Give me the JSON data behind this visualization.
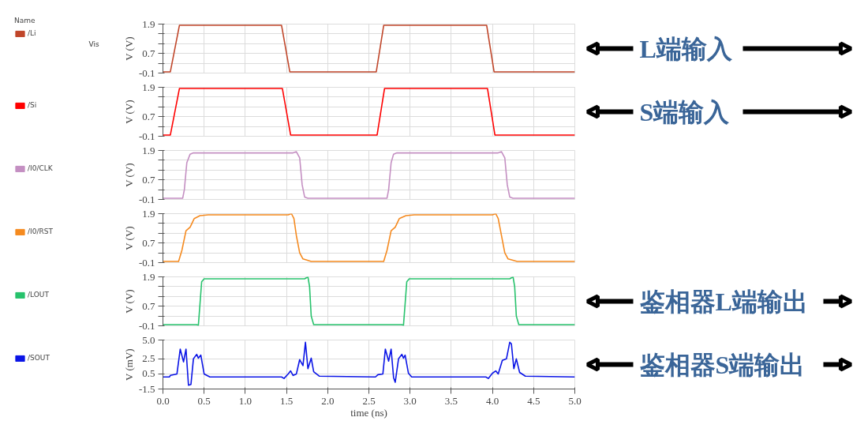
{
  "chart_data": [
    {
      "type": "line",
      "xlim": [
        0,
        5
      ],
      "xticks": [
        0,
        0.5,
        1,
        1.5,
        2,
        2.5,
        3,
        3.5,
        4,
        4.5,
        5
      ],
      "ylim": [
        -0.1,
        1.9
      ],
      "yticks": [
        -0.1,
        {
          "value": 0.3,
          "label": null
        },
        0.7,
        {
          "value": 1.1,
          "label": null
        },
        {
          "value": 1.5,
          "label": null
        },
        1.9
      ],
      "ylabel": "V (V)",
      "grid": true,
      "legend": "left",
      "legend_title": "Name",
      "tick_labels": "y",
      "line_style": "solid",
      "annotations": [
        "Vis",
        "L端输入"
      ],
      "series": [
        {
          "name": "/Li",
          "color": "#c0462a",
          "x": [
            0,
            0.09,
            0.2,
            1.44,
            1.54,
            2.59,
            2.68,
            3.93,
            4.02,
            5.0
          ],
          "values": [
            -0.05,
            -0.05,
            1.85,
            1.85,
            -0.05,
            -0.05,
            1.85,
            1.85,
            -0.05,
            -0.05
          ]
        }
      ]
    },
    {
      "type": "line",
      "xlim": [
        0,
        5
      ],
      "xticks": [
        0,
        0.5,
        1,
        1.5,
        2,
        2.5,
        3,
        3.5,
        4,
        4.5,
        5
      ],
      "ylim": [
        -0.1,
        1.9
      ],
      "yticks": [
        -0.1,
        {
          "value": 0.3,
          "label": null
        },
        0.7,
        {
          "value": 1.1,
          "label": null
        },
        {
          "value": 1.5,
          "label": null
        },
        1.9
      ],
      "ylabel": "V (V)",
      "grid": true,
      "legend": "left",
      "tick_labels": "y",
      "line_style": "solid",
      "annotations": [
        "S端输入"
      ],
      "series": [
        {
          "name": "/Si",
          "color": "#ff0000",
          "x": [
            0,
            0.09,
            0.2,
            1.45,
            1.55,
            2.6,
            2.69,
            3.94,
            4.03,
            5.0
          ],
          "values": [
            -0.05,
            -0.05,
            1.85,
            1.85,
            -0.05,
            -0.05,
            1.85,
            1.85,
            -0.05,
            -0.05
          ]
        }
      ]
    },
    {
      "type": "line",
      "xlim": [
        0,
        5
      ],
      "xticks": [
        0,
        0.5,
        1,
        1.5,
        2,
        2.5,
        3,
        3.5,
        4,
        4.5,
        5
      ],
      "ylim": [
        -0.1,
        1.9
      ],
      "yticks": [
        -0.1,
        {
          "value": 0.3,
          "label": null
        },
        0.7,
        {
          "value": 1.1,
          "label": null
        },
        {
          "value": 1.5,
          "label": null
        },
        1.9
      ],
      "ylabel": "V (V)",
      "grid": true,
      "legend": "left",
      "tick_labels": "y",
      "line_style": "solid",
      "series": [
        {
          "name": "/I0/CLK",
          "color": "#c48fc2",
          "x": [
            0,
            0.24,
            0.26,
            0.29,
            0.33,
            0.37,
            1.58,
            1.62,
            1.66,
            1.69,
            1.72,
            1.76,
            2.72,
            2.74,
            2.77,
            2.8,
            2.84,
            4.07,
            4.11,
            4.15,
            4.18,
            4.21,
            4.25,
            5.0
          ],
          "values": [
            -0.05,
            -0.05,
            0.3,
            1.4,
            1.75,
            1.8,
            1.8,
            1.85,
            1.6,
            0.5,
            0.0,
            -0.05,
            -0.05,
            0.3,
            1.4,
            1.75,
            1.8,
            1.8,
            1.85,
            1.6,
            0.5,
            0.0,
            -0.05,
            -0.05
          ]
        }
      ]
    },
    {
      "type": "line",
      "xlim": [
        0,
        5
      ],
      "xticks": [
        0,
        0.5,
        1,
        1.5,
        2,
        2.5,
        3,
        3.5,
        4,
        4.5,
        5
      ],
      "ylim": [
        -0.1,
        1.9
      ],
      "yticks": [
        -0.1,
        {
          "value": 0.3,
          "label": null
        },
        0.7,
        {
          "value": 1.1,
          "label": null
        },
        {
          "value": 1.5,
          "label": null
        },
        1.9
      ],
      "ylabel": "V (V)",
      "grid": true,
      "legend": "left",
      "tick_labels": "y",
      "line_style": "solid",
      "series": [
        {
          "name": "/I0/RST",
          "color": "#f58a1f",
          "x": [
            0,
            0.17,
            0.19,
            0.23,
            0.28,
            0.33,
            0.38,
            0.45,
            0.55,
            1.52,
            1.56,
            1.59,
            1.62,
            1.66,
            1.7,
            1.8,
            2.66,
            2.68,
            2.72,
            2.77,
            2.82,
            2.87,
            2.95,
            3.05,
            4.0,
            4.04,
            4.07,
            4.11,
            4.15,
            4.19,
            4.3,
            5.0
          ],
          "values": [
            -0.05,
            -0.05,
            -0.05,
            0.4,
            1.2,
            1.35,
            1.7,
            1.82,
            1.85,
            1.85,
            1.9,
            1.7,
            1.0,
            0.3,
            0.05,
            -0.05,
            -0.05,
            -0.05,
            0.4,
            1.2,
            1.35,
            1.7,
            1.82,
            1.85,
            1.85,
            1.9,
            1.7,
            1.0,
            0.3,
            0.05,
            -0.05,
            -0.05
          ]
        }
      ]
    },
    {
      "type": "line",
      "xlim": [
        0,
        5
      ],
      "xticks": [
        0,
        0.5,
        1,
        1.5,
        2,
        2.5,
        3,
        3.5,
        4,
        4.5,
        5
      ],
      "ylim": [
        -0.1,
        1.9
      ],
      "yticks": [
        -0.1,
        {
          "value": 0.3,
          "label": null
        },
        0.7,
        {
          "value": 1.1,
          "label": null
        },
        {
          "value": 1.5,
          "label": null
        },
        1.9
      ],
      "ylabel": "V (V)",
      "grid": true,
      "legend": "left",
      "tick_labels": "y",
      "line_style": "solid",
      "annotations": [
        "鉴相器L端输出"
      ],
      "series": [
        {
          "name": "/LOUT",
          "color": "#27c26c",
          "x": [
            0,
            0.41,
            0.43,
            0.45,
            0.47,
            0.5,
            1.72,
            1.76,
            1.78,
            1.8,
            1.83,
            2.9,
            2.92,
            2.94,
            2.96,
            2.99,
            4.21,
            4.25,
            4.27,
            4.29,
            4.32,
            5.0
          ],
          "values": [
            -0.05,
            -0.05,
            -0.08,
            0.8,
            1.7,
            1.82,
            1.82,
            1.9,
            1.5,
            0.3,
            -0.05,
            -0.05,
            -0.08,
            0.8,
            1.7,
            1.82,
            1.82,
            1.9,
            1.5,
            0.3,
            -0.05,
            -0.05
          ]
        }
      ]
    },
    {
      "type": "line",
      "xlim": [
        0,
        5
      ],
      "xticks": [
        {
          "value": 0,
          "label": "0.0"
        },
        0.5,
        {
          "value": 1,
          "label": "1.0"
        },
        1.5,
        {
          "value": 2,
          "label": "2.0"
        },
        2.5,
        {
          "value": 3,
          "label": "3.0"
        },
        3.5,
        {
          "value": 4,
          "label": "4.0"
        },
        4.5,
        {
          "value": 5,
          "label": "5.0"
        }
      ],
      "ylim": [
        -1.5,
        5.0
      ],
      "yticks": [
        -1.5,
        0.5,
        2.5,
        {
          "value": 5,
          "label": "5.0"
        }
      ],
      "ylabel": "V (mV)",
      "xlabel": "time (ns)",
      "grid": true,
      "legend": "left",
      "line_style": "solid",
      "annotations": [
        "鉴相器S端输出"
      ],
      "series": [
        {
          "name": "/SOUT",
          "color": "#0a14e6",
          "x": [
            0,
            0.08,
            0.09,
            0.17,
            0.21,
            0.25,
            0.28,
            0.31,
            0.34,
            0.37,
            0.41,
            0.43,
            0.46,
            0.5,
            0.57,
            1.44,
            1.47,
            1.52,
            1.55,
            1.58,
            1.62,
            1.66,
            1.7,
            1.73,
            1.76,
            1.8,
            1.83,
            1.9,
            2.58,
            2.61,
            2.67,
            2.7,
            2.74,
            2.77,
            2.8,
            2.82,
            2.86,
            2.9,
            2.92,
            2.94,
            2.98,
            3.02,
            3.92,
            3.95,
            4.0,
            4.04,
            4.07,
            4.12,
            4.17,
            4.21,
            4.23,
            4.26,
            4.29,
            4.33,
            4.4,
            5.0
          ],
          "values": [
            0.1,
            0.1,
            0.3,
            0.5,
            3.8,
            2.1,
            3.8,
            -1.0,
            -0.9,
            2.5,
            3.1,
            2.6,
            3.0,
            0.5,
            0.1,
            0.1,
            -0.1,
            0.5,
            0.9,
            0.3,
            0.5,
            2.4,
            1.6,
            4.7,
            1.2,
            2.6,
            0.8,
            0.2,
            0.1,
            0.4,
            0.5,
            3.8,
            2.2,
            3.8,
            0.0,
            -0.6,
            2.5,
            3.1,
            2.6,
            3.0,
            0.6,
            0.1,
            0.1,
            -0.1,
            0.6,
            0.9,
            0.5,
            2.3,
            2.5,
            4.7,
            4.5,
            1.2,
            2.5,
            0.7,
            0.2,
            0.1
          ]
        }
      ]
    }
  ]
}
